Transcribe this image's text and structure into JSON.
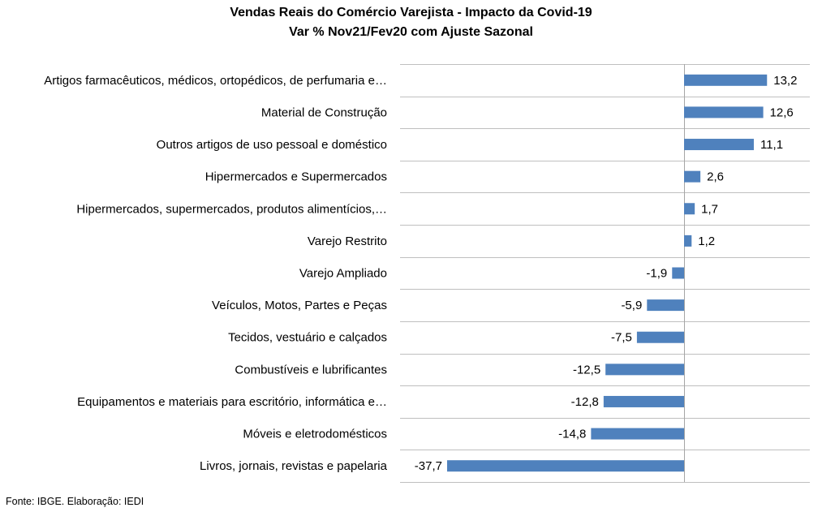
{
  "chart_data": {
    "type": "bar",
    "orientation": "horizontal",
    "title": "Vendas Reais do Comércio Varejista - Impacto da Covid-19",
    "subtitle": "Var % Nov21/Fev20 com Ajuste Sazonal",
    "categories": [
      "Artigos farmacêuticos, médicos, ortopédicos, de perfumaria e…",
      "Material de Construção",
      "Outros artigos de uso pessoal e doméstico",
      "Hipermercados e Supermercados",
      "Hipermercados, supermercados, produtos alimentícios,…",
      "Varejo Restrito",
      "Varejo Ampliado",
      "Veículos, Motos, Partes e Peças",
      "Tecidos, vestuário e calçados",
      "Combustíveis e lubrificantes",
      "Equipamentos e materiais para escritório, informática e…",
      "Móveis e eletrodomésticos",
      "Livros, jornais, revistas e papelaria"
    ],
    "values": [
      13.2,
      12.6,
      11.1,
      2.6,
      1.7,
      1.2,
      -1.9,
      -5.9,
      -7.5,
      -12.5,
      -12.8,
      -14.8,
      -37.7
    ],
    "value_labels": [
      "13,2",
      "12,6",
      "11,1",
      "2,6",
      "1,7",
      "1,2",
      "-1,9",
      "-5,9",
      "-7,5",
      "-12,5",
      "-12,8",
      "-14,8",
      "-37,7"
    ],
    "xlim": [
      -45,
      20
    ],
    "grid": "horizontal lines between categories",
    "legend": "none",
    "bar_color": "#4f81bd",
    "grid_color": "#bfbfbf",
    "axis_color": "#a6a6a6"
  },
  "footer": "Fonte: IBGE. Elaboração: IEDI"
}
